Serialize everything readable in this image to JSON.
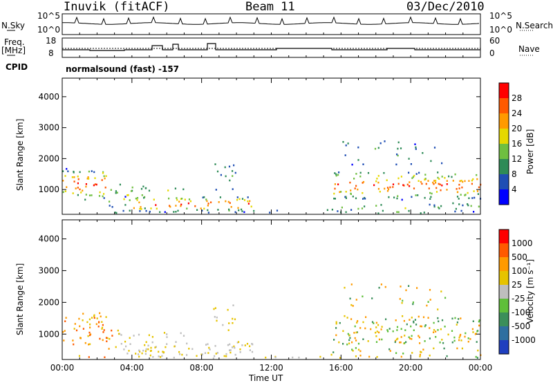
{
  "header": {
    "station": "Inuvik (fitACF)",
    "beam": "Beam 11",
    "date": "03/Dec/2010"
  },
  "panels": {
    "nsky": {
      "label": "N.Sky",
      "ticks": [
        "10^5",
        "10^0"
      ],
      "right_label": "N.Search",
      "right_ticks": [
        "10^5",
        "10^0"
      ]
    },
    "freq": {
      "label_line1": "Freq.",
      "label_line2": "[MHz]",
      "ticks": [
        "18",
        "8"
      ],
      "right_label": "Nave",
      "right_ticks": [
        "60",
        "0"
      ]
    },
    "cpid": {
      "label": "CPID",
      "text": "normalsound (fast) -157"
    }
  },
  "colors": {
    "power": [
      "#0000ff",
      "#1f4eb4",
      "#2e8b57",
      "#6fbf40",
      "#e6d800",
      "#ff9a00",
      "#ff5a00",
      "#ff0000"
    ],
    "velocity": [
      "#1f3fbf",
      "#2f6fa0",
      "#3b8f5a",
      "#5fbf3a",
      "#bebebe",
      "#e6c300",
      "#ff9a00",
      "#ff5a00",
      "#ff0000"
    ]
  },
  "chart_data": [
    {
      "type": "heatmap",
      "xlabel": "Time UT",
      "ylabel": "Slant Range [km]",
      "x_ticks": [
        "00:00",
        "04:00",
        "08:00",
        "12:00",
        "16:00",
        "20:00",
        "00:00"
      ],
      "y_ticks": [
        "1000",
        "2000",
        "3000",
        "4000"
      ],
      "ylim": [
        200,
        4600
      ],
      "colorbar": {
        "label": "Power [dB]",
        "ticks": [
          "4",
          "8",
          "12",
          "16",
          "20",
          "24",
          "28"
        ],
        "range": [
          0,
          32
        ]
      }
    },
    {
      "type": "heatmap",
      "xlabel": "Time UT",
      "ylabel": "Slant Range [km]",
      "x_ticks": [
        "00:00",
        "04:00",
        "08:00",
        "12:00",
        "16:00",
        "20:00",
        "00:00"
      ],
      "y_ticks": [
        "1000",
        "2000",
        "3000",
        "4000"
      ],
      "ylim": [
        200,
        4600
      ],
      "colorbar": {
        "label": "Velocity [m s⁻¹]",
        "ticks": [
          "1000",
          "500",
          "100",
          "25",
          "-25",
          "-100",
          "-500",
          "-1000"
        ]
      }
    }
  ]
}
